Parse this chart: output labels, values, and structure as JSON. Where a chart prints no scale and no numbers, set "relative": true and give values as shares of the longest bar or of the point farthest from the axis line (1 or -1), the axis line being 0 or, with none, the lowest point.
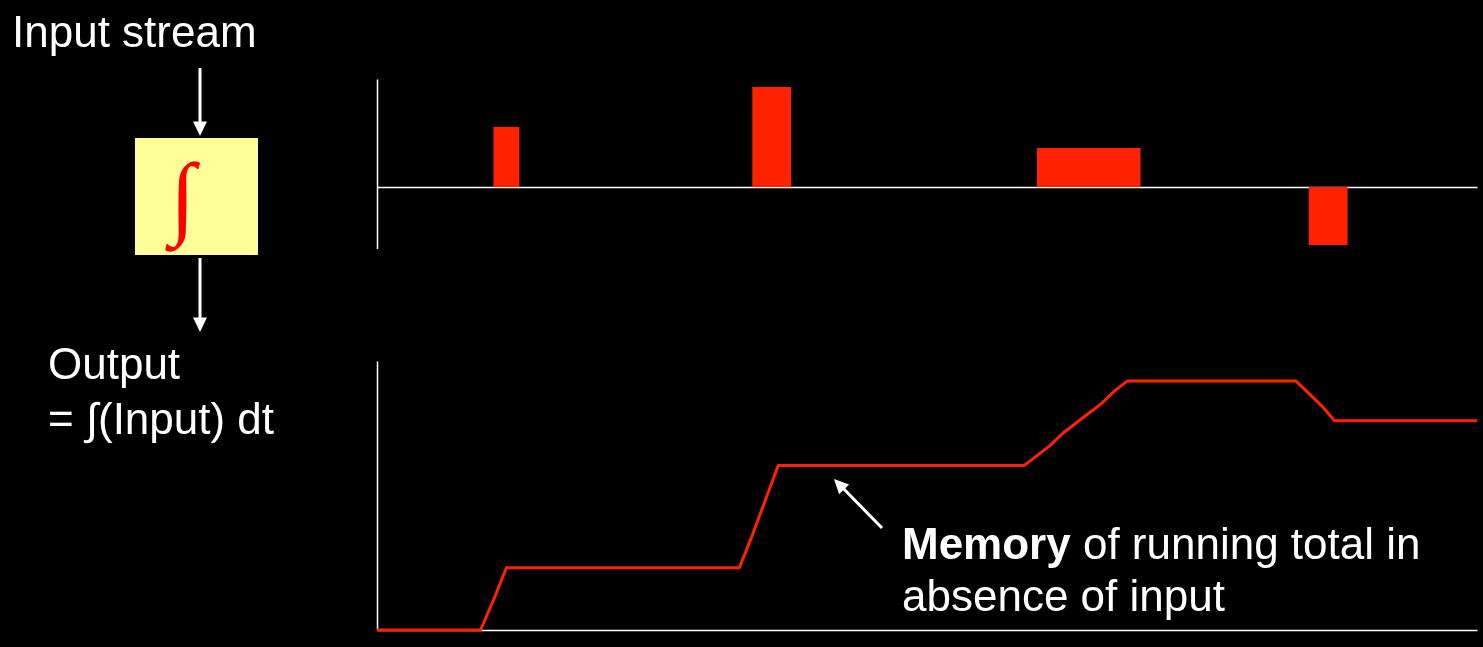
{
  "chart_data": [
    {
      "type": "area",
      "relative": true,
      "color": "#ff2200",
      "annotations": [
        "Input stream"
      ],
      "categories": [
        null,
        null,
        null,
        null,
        null,
        null,
        null,
        null,
        null,
        null,
        null,
        null,
        null,
        null,
        null,
        null,
        null,
        null,
        null,
        null,
        null,
        null,
        null,
        null,
        null,
        null,
        null,
        null,
        null,
        null,
        null,
        null,
        null,
        null,
        null,
        null,
        null,
        null,
        null,
        null,
        null,
        null,
        null,
        null,
        null,
        null,
        null,
        null,
        null,
        null,
        null,
        null,
        null,
        null,
        null,
        null,
        null,
        null,
        null,
        null,
        null,
        null,
        null,
        null,
        null,
        null,
        null,
        null,
        null,
        null,
        null,
        null,
        null,
        null,
        null,
        null,
        null,
        null,
        null,
        null,
        null,
        null,
        null,
        null,
        null,
        null
      ],
      "values": [
        0,
        0,
        0,
        0,
        0,
        0,
        0,
        0,
        0,
        0.6,
        0.6,
        0,
        0,
        0,
        0,
        0,
        0,
        0,
        0,
        0,
        0,
        0,
        0,
        0,
        0,
        0,
        0,
        0,
        0,
        1,
        1,
        1,
        0,
        0,
        0,
        0,
        0,
        0,
        0,
        0,
        0,
        0,
        0,
        0,
        0,
        0,
        0,
        0,
        0,
        0,
        0,
        0.39,
        0.39,
        0.39,
        0.39,
        0.39,
        0.39,
        0.39,
        0.39,
        0,
        0,
        0,
        0,
        0,
        0,
        0,
        0,
        0,
        0,
        0,
        0,
        0,
        -0.58,
        -0.58,
        -0.58,
        0,
        0,
        0,
        0,
        0,
        0,
        0,
        0,
        0,
        0,
        0
      ]
    },
    {
      "type": "line",
      "relative": true,
      "color": "#ff2200",
      "annotations": [
        "∫",
        "Output",
        "= ∫(Input) dt",
        "Memory of running total in absence of input"
      ],
      "categories": [
        null,
        null,
        null,
        null,
        null,
        null,
        null,
        null,
        null,
        null,
        null,
        null,
        null,
        null,
        null,
        null,
        null,
        null,
        null,
        null,
        null,
        null,
        null,
        null,
        null,
        null,
        null,
        null,
        null,
        null,
        null,
        null,
        null,
        null,
        null,
        null,
        null,
        null,
        null,
        null,
        null,
        null,
        null,
        null,
        null,
        null,
        null,
        null,
        null,
        null,
        null,
        null,
        null,
        null,
        null,
        null,
        null,
        null,
        null,
        null,
        null,
        null,
        null,
        null,
        null,
        null,
        null,
        null,
        null,
        null,
        null,
        null,
        null,
        null,
        null,
        null,
        null,
        null,
        null,
        null,
        null,
        null,
        null,
        null,
        null,
        null
      ],
      "values": [
        0,
        0,
        0,
        0,
        0,
        0,
        0,
        0,
        0,
        0.12,
        0.25,
        0.25,
        0.25,
        0.25,
        0.25,
        0.25,
        0.25,
        0.25,
        0.25,
        0.25,
        0.25,
        0.25,
        0.25,
        0.25,
        0.25,
        0.25,
        0.25,
        0.25,
        0.25,
        0.38,
        0.52,
        0.66,
        0.66,
        0.66,
        0.66,
        0.66,
        0.66,
        0.66,
        0.66,
        0.66,
        0.66,
        0.66,
        0.66,
        0.66,
        0.66,
        0.66,
        0.66,
        0.66,
        0.66,
        0.66,
        0.66,
        0.7,
        0.74,
        0.79,
        0.83,
        0.87,
        0.91,
        0.96,
        1,
        1,
        1,
        1,
        1,
        1,
        1,
        1,
        1,
        1,
        1,
        1,
        1,
        1,
        0.95,
        0.9,
        0.84,
        0.84,
        0.84,
        0.84,
        0.84,
        0.84,
        0.84,
        0.84,
        0.84,
        0.84,
        0.84,
        0.84
      ]
    }
  ]
}
